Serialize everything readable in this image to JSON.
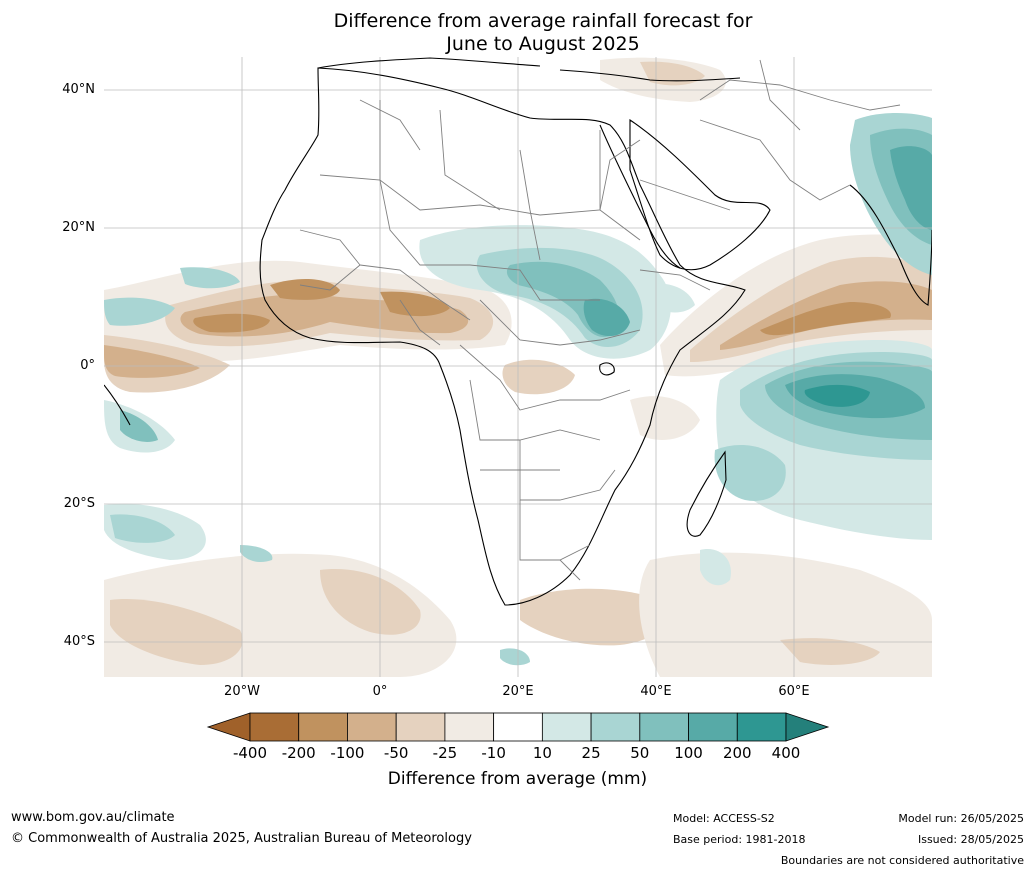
{
  "title": {
    "line1": "Difference from average rainfall forecast for",
    "line2": "June to August 2025"
  },
  "map": {
    "region": "Africa",
    "lat_labels": [
      "40°N",
      "20°N",
      "0°",
      "20°S",
      "40°S"
    ],
    "lon_labels": [
      "20°W",
      "0°",
      "20°E",
      "40°E",
      "60°E"
    ],
    "lat_range": [
      -45,
      45
    ],
    "lon_range": [
      -40,
      80
    ],
    "colors": {
      "dry_strong": "#a96d35",
      "dry_2": "#c0925f",
      "dry_3": "#d3b08c",
      "dry_4": "#e5d2bf",
      "dry_5": "#f1ebe4",
      "neutral": "#ffffff",
      "wet_1": "#d3e8e6",
      "wet_2": "#a9d5d3",
      "wet_3": "#80c0bd",
      "wet_4": "#57aaa7",
      "wet_strong": "#2e9792"
    }
  },
  "colorbar": {
    "ticks": [
      "-400",
      "-200",
      "-100",
      "-50",
      "-25",
      "-10",
      "10",
      "25",
      "50",
      "100",
      "200",
      "400"
    ],
    "colors": [
      "#a96d35",
      "#c0925f",
      "#d3b08c",
      "#e5d2bf",
      "#f1ebe4",
      "#ffffff",
      "#d3e8e6",
      "#a9d5d3",
      "#80c0bd",
      "#57aaa7",
      "#2e9792"
    ],
    "extend_low_color": "#a0612a",
    "extend_high_color": "#24807b",
    "label": "Difference from average (mm)"
  },
  "footer": {
    "website": "www.bom.gov.au/climate",
    "copyright": "© Commonwealth of Australia 2025, Australian Bureau of Meteorology",
    "model": "Model: ACCESS-S2",
    "base_period": "Base period: 1981-2018",
    "model_run": "Model run: 26/05/2025",
    "issued": "Issued: 28/05/2025",
    "disclaimer": "Boundaries are not considered authoritative"
  }
}
